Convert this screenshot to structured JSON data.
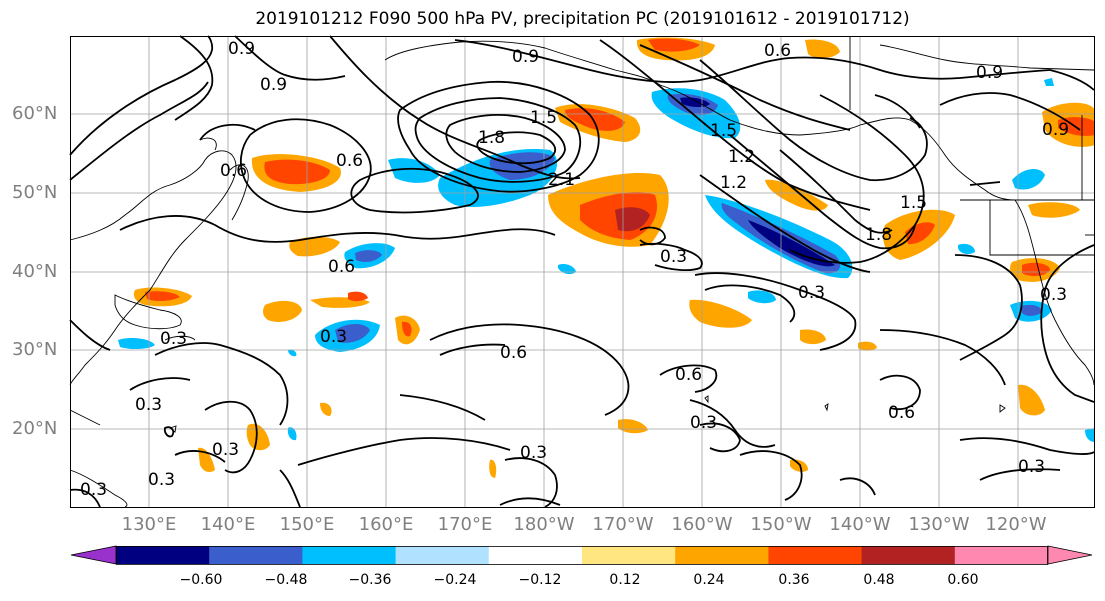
{
  "title": "2019101212 F090 500 hPa PV, precipitation PC (2019101612 - 2019101712)",
  "lat_labels": [
    "60°N",
    "50°N",
    "40°N",
    "30°N",
    "20°N"
  ],
  "lon_labels": [
    "130°E",
    "140°E",
    "150°E",
    "160°E",
    "170°E",
    "180°W",
    "170°W",
    "160°W",
    "150°W",
    "140°W",
    "130°W",
    "120°W"
  ],
  "contour_labels": [
    "0.9",
    "0.9",
    "0.9",
    "0.6",
    "0.9",
    "1.5",
    "1.8",
    "2.1",
    "0.6",
    "0.6",
    "0.3",
    "0.6",
    "0.3",
    "0.6",
    "0.3",
    "0.3",
    "0.3",
    "0.3",
    "0.3",
    "1.2",
    "1.8",
    "1.5",
    "0.6",
    "0.3",
    "0.9",
    "0.3",
    "0.6",
    "0.3",
    "0.3",
    "0.3",
    "1.5",
    "1.2"
  ],
  "colorbar": {
    "ticks": [
      "−0.60",
      "−0.48",
      "−0.36",
      "−0.24",
      "−0.12",
      "0.12",
      "0.24",
      "0.36",
      "0.48",
      "0.60"
    ],
    "colors": [
      "#9932cc",
      "#000080",
      "#3a5fcd",
      "#00bfff",
      "#b0e2ff",
      "#ffffff",
      "#ffe680",
      "#ffa500",
      "#ff4500",
      "#b22222",
      "#ff88b0"
    ]
  }
}
